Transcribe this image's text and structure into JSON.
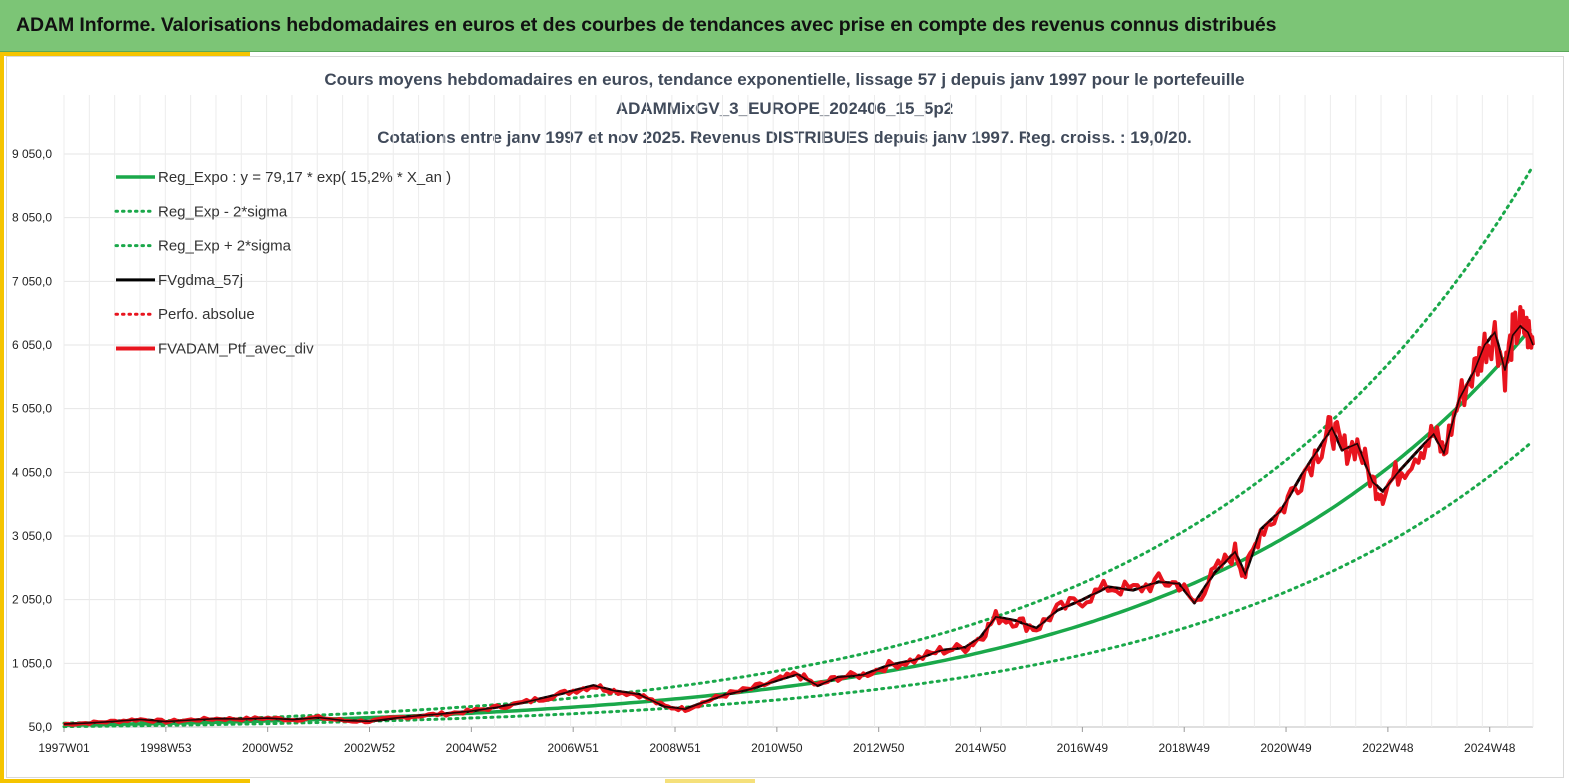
{
  "header": {
    "title": "ADAM Informe. Valorisations hebdomadaires en euros et des courbes de tendances avec prise en compte des revenus connus distribués"
  },
  "colors": {
    "header_bg": "#7cc576",
    "accent": "#f5c400",
    "green": "#1aa84a",
    "black": "#000000",
    "red": "#e8141e"
  },
  "chart_data": {
    "type": "line",
    "title_lines": [
      "Cours moyens hebdomadaires  en euros, tendance exponentielle, lissage 57 j depuis janv 1997 pour le portefeuille",
      "ADAMMixGV_3_EUROPE_202406_15_5p2",
      "Cotations  entre janv 1997 et nov 2025. Revenus DISTRIBUES depuis janv 1997. Reg. croiss. : 19,0/20."
    ],
    "x_ticks": [
      "1997W01",
      "1998W53",
      "2000W52",
      "2002W52",
      "2004W52",
      "2006W51",
      "2008W51",
      "2010W50",
      "2012W50",
      "2014W50",
      "2016W49",
      "2018W49",
      "2020W49",
      "2022W48",
      "2024W48"
    ],
    "x_range_years": [
      1997.0,
      2025.85
    ],
    "y_ticks": [
      "50,0",
      "1 050,0",
      "2 050,0",
      "3 050,0",
      "4 050,0",
      "5 050,0",
      "6 050,0",
      "7 050,0",
      "8 050,0",
      "9 050,0"
    ],
    "ylim": [
      50,
      9050
    ],
    "grid": true,
    "legend_position": "top-left",
    "series": [
      {
        "name": "Reg_Expo : y = 79,17 * exp( 15,2% *  X_an )",
        "style": "solid",
        "color": "#1aa84a",
        "width": 3.5,
        "formula": {
          "a": 79.17,
          "rate": 0.152,
          "factor": 1.0
        }
      },
      {
        "name": "Reg_Exp - 2*sigma",
        "style": "dotted",
        "color": "#1aa84a",
        "width": 3,
        "formula": {
          "a": 79.17,
          "rate": 0.152,
          "factor": 0.715
        }
      },
      {
        "name": "Reg_Exp + 2*sigma",
        "style": "dotted",
        "color": "#1aa84a",
        "width": 3,
        "formula": {
          "a": 79.17,
          "rate": 0.152,
          "factor": 1.395
        }
      },
      {
        "name": "FVgdma_57j",
        "style": "solid",
        "color": "#000000",
        "width": 3
      },
      {
        "name": "Perfo. absolue",
        "style": "dotted",
        "color": "#e8141e",
        "width": 3
      },
      {
        "name": "FVADAM_Ptf_avec_div",
        "style": "solid",
        "color": "#e8141e",
        "width": 4,
        "points": [
          [
            1997.0,
            95
          ],
          [
            1997.5,
            115
          ],
          [
            1998.0,
            140
          ],
          [
            1998.5,
            170
          ],
          [
            1999.0,
            135
          ],
          [
            1999.5,
            160
          ],
          [
            2000.0,
            180
          ],
          [
            2000.5,
            175
          ],
          [
            2001.0,
            190
          ],
          [
            2001.5,
            165
          ],
          [
            2002.0,
            200
          ],
          [
            2002.5,
            150
          ],
          [
            2003.0,
            140
          ],
          [
            2003.5,
            190
          ],
          [
            2004.0,
            230
          ],
          [
            2004.5,
            260
          ],
          [
            2005.0,
            300
          ],
          [
            2005.5,
            360
          ],
          [
            2006.0,
            430
          ],
          [
            2006.5,
            520
          ],
          [
            2007.0,
            620
          ],
          [
            2007.4,
            700
          ],
          [
            2007.8,
            620
          ],
          [
            2008.3,
            560
          ],
          [
            2008.8,
            370
          ],
          [
            2009.2,
            330
          ],
          [
            2009.6,
            450
          ],
          [
            2010.0,
            560
          ],
          [
            2010.5,
            650
          ],
          [
            2011.0,
            780
          ],
          [
            2011.4,
            880
          ],
          [
            2011.8,
            700
          ],
          [
            2012.2,
            830
          ],
          [
            2012.7,
            870
          ],
          [
            2013.2,
            1020
          ],
          [
            2013.7,
            1100
          ],
          [
            2014.2,
            1250
          ],
          [
            2014.7,
            1300
          ],
          [
            2015.0,
            1460
          ],
          [
            2015.3,
            1780
          ],
          [
            2015.7,
            1720
          ],
          [
            2016.1,
            1600
          ],
          [
            2016.5,
            1880
          ],
          [
            2017.0,
            2050
          ],
          [
            2017.5,
            2250
          ],
          [
            2018.0,
            2200
          ],
          [
            2018.5,
            2330
          ],
          [
            2018.9,
            2300
          ],
          [
            2019.2,
            2000
          ],
          [
            2019.6,
            2480
          ],
          [
            2020.0,
            2800
          ],
          [
            2020.2,
            2450
          ],
          [
            2020.5,
            3150
          ],
          [
            2020.9,
            3450
          ],
          [
            2021.3,
            4000
          ],
          [
            2021.7,
            4500
          ],
          [
            2021.9,
            4750
          ],
          [
            2022.1,
            4400
          ],
          [
            2022.4,
            4500
          ],
          [
            2022.7,
            3900
          ],
          [
            2022.9,
            3750
          ],
          [
            2023.2,
            4050
          ],
          [
            2023.6,
            4400
          ],
          [
            2023.9,
            4650
          ],
          [
            2024.1,
            4350
          ],
          [
            2024.4,
            5200
          ],
          [
            2024.7,
            5650
          ],
          [
            2024.9,
            6050
          ],
          [
            2025.1,
            6250
          ],
          [
            2025.3,
            5650
          ],
          [
            2025.45,
            6200
          ],
          [
            2025.6,
            6350
          ],
          [
            2025.75,
            6250
          ],
          [
            2025.85,
            6050
          ]
        ]
      }
    ]
  }
}
